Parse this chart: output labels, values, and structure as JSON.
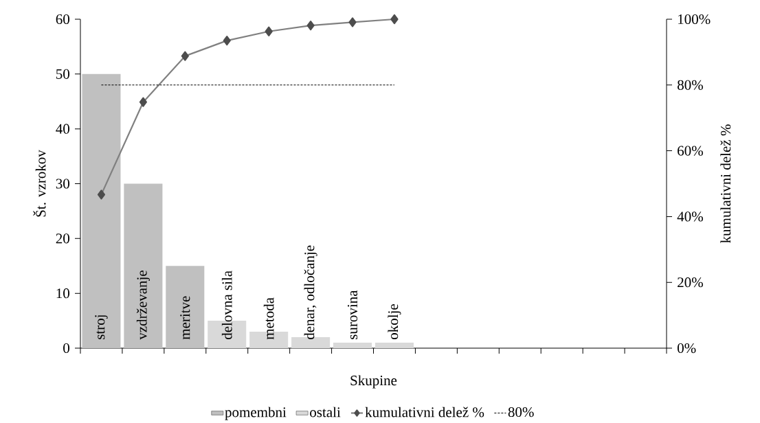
{
  "chart_data": {
    "type": "bar",
    "xlabel": "Skupine",
    "ylabel": "Št. vzrokov",
    "y2label": "kumulativni delež %",
    "categories": [
      "stroj",
      "vzdrževanje",
      "meritve",
      "delovna sila",
      "metoda",
      "denar, odločanje",
      "surovina",
      "okolje",
      null,
      null,
      null,
      null,
      null,
      null
    ],
    "series": [
      {
        "name": "pomembni",
        "color": "#c0c0c0",
        "values": [
          50,
          30,
          15,
          null,
          null,
          null,
          null,
          null,
          null,
          null,
          null,
          null,
          null,
          null
        ]
      },
      {
        "name": "ostali",
        "color": "#d9d9d9",
        "values": [
          null,
          null,
          null,
          5,
          3,
          2,
          1,
          1,
          null,
          null,
          null,
          null,
          null,
          null
        ]
      },
      {
        "name": "kumulativni delež %",
        "type": "line",
        "axis": "y2",
        "color": "#808080",
        "marker": "diamond",
        "values": [
          46.7,
          74.8,
          88.8,
          93.5,
          96.3,
          98.1,
          99.1,
          100,
          null,
          null,
          null,
          null,
          null,
          null
        ]
      },
      {
        "name": "80%",
        "type": "line",
        "axis": "y2",
        "color": "#000000",
        "line_style": "dashed",
        "marker": "none",
        "values": [
          80,
          80,
          80,
          80,
          80,
          80,
          80,
          80,
          null,
          null,
          null,
          null,
          null,
          null
        ]
      }
    ],
    "ylim": [
      0,
      60
    ],
    "yticks": [
      0,
      10,
      20,
      30,
      40,
      50,
      60
    ],
    "y2lim": [
      0,
      100
    ],
    "y2ticks": [
      {
        "value": 0,
        "label": "0%"
      },
      {
        "value": 20,
        "label": "20%"
      },
      {
        "value": 40,
        "label": "40%"
      },
      {
        "value": 60,
        "label": "60%"
      },
      {
        "value": 80,
        "label": "80%"
      },
      {
        "value": 100,
        "label": "100%"
      }
    ],
    "legend": "bottom"
  }
}
